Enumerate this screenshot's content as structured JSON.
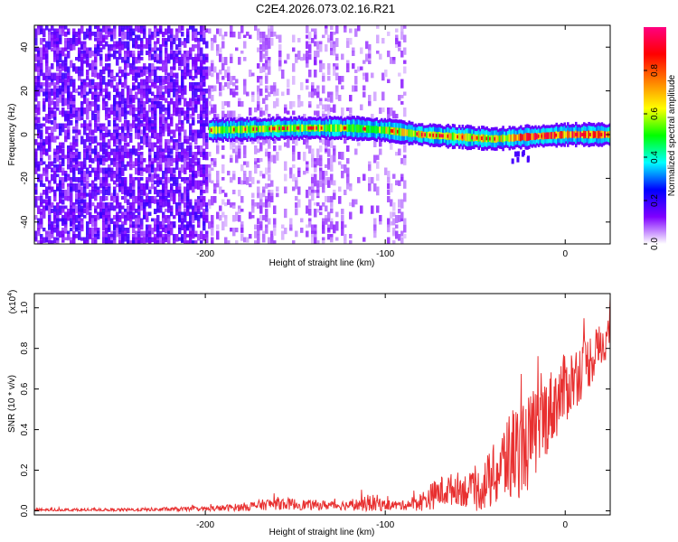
{
  "title": "C2E4.2026.073.02.16.R21",
  "chart_data": [
    {
      "type": "heatmap",
      "xlabel": "Height of straight line (km)",
      "ylabel": "Frequency (Hz)",
      "xlim": [
        -295,
        25
      ],
      "ylim": [
        -50,
        50
      ],
      "xticks": [
        -200,
        -100,
        0
      ],
      "yticks": [
        -40,
        -20,
        0,
        20,
        40
      ],
      "xtick_labels": [
        "-200",
        "-100",
        "0"
      ],
      "ytick_labels": [
        "-40",
        "-20",
        "0",
        "20",
        "40"
      ],
      "colorbar": {
        "label": "Normalized spectral amplitude",
        "range": [
          0,
          1
        ],
        "ticks": [
          0.0,
          0.2,
          0.4,
          0.6,
          0.8
        ],
        "tick_labels": [
          "0.0",
          "0.2",
          "0.4",
          "0.6",
          "0.8"
        ],
        "colors": [
          "#ffffff",
          "#7f00ff",
          "#0000ff",
          "#00ffff",
          "#00ff00",
          "#ffff00",
          "#ff8000",
          "#ff0000",
          "#ff0080"
        ]
      },
      "signal_band": {
        "x_range": [
          -198,
          25
        ],
        "center_freq_points": [
          [
            -198,
            2
          ],
          [
            -150,
            3
          ],
          [
            -120,
            3
          ],
          [
            -100,
            2
          ],
          [
            -80,
            0
          ],
          [
            -60,
            -1
          ],
          [
            -40,
            -2
          ],
          [
            -20,
            -1
          ],
          [
            0,
            0
          ],
          [
            25,
            0
          ]
        ],
        "half_width_hz": 3
      },
      "noise_region": {
        "x_range": [
          -295,
          -200
        ],
        "level": 0.25
      }
    },
    {
      "type": "line",
      "xlabel": "Height of straight line (km)",
      "ylabel": "SNR (10 * v/v)",
      "y_scale_label": "(x10",
      "y_scale_exponent": "4",
      "y_scale_suffix": ")",
      "xlim": [
        -295,
        25
      ],
      "ylim": [
        -0.02,
        1.07
      ],
      "xticks": [
        -200,
        -100,
        0
      ],
      "yticks": [
        0.0,
        0.2,
        0.4,
        0.6,
        0.8,
        1.0
      ],
      "xtick_labels": [
        "-200",
        "-100",
        "0"
      ],
      "ytick_labels": [
        "0.0",
        "0.2",
        "0.4",
        "0.6",
        "0.8",
        "1.0"
      ],
      "series": [
        {
          "name": "SNR",
          "color": "#e83030",
          "envelope_x": [
            -295,
            -250,
            -200,
            -180,
            -160,
            -140,
            -120,
            -105,
            -100,
            -90,
            -80,
            -70,
            -60,
            -50,
            -40,
            -30,
            -20,
            -10,
            0,
            10,
            20,
            25
          ],
          "envelope_mean": [
            0.005,
            0.005,
            0.01,
            0.02,
            0.04,
            0.03,
            0.03,
            0.04,
            0.03,
            0.03,
            0.05,
            0.1,
            0.12,
            0.1,
            0.18,
            0.3,
            0.36,
            0.5,
            0.62,
            0.72,
            0.82,
            0.9
          ],
          "envelope_spread": [
            0.01,
            0.01,
            0.015,
            0.025,
            0.04,
            0.03,
            0.03,
            0.06,
            0.03,
            0.03,
            0.06,
            0.1,
            0.1,
            0.12,
            0.2,
            0.3,
            0.3,
            0.25,
            0.22,
            0.18,
            0.15,
            0.12
          ]
        }
      ]
    }
  ]
}
